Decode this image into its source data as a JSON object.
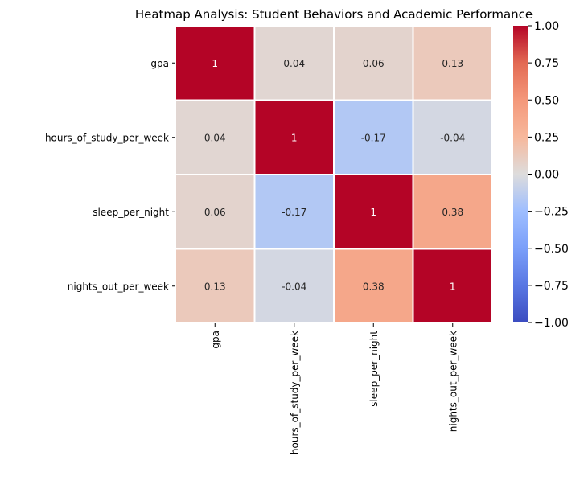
{
  "chart_data": {
    "type": "heatmap",
    "title": "Heatmap Analysis: Student Behaviors and Academic Performance",
    "rows": [
      "gpa",
      "hours_of_study_per_week",
      "sleep_per_night",
      "nights_out_per_week"
    ],
    "columns": [
      "gpa",
      "hours_of_study_per_week",
      "sleep_per_night",
      "nights_out_per_week"
    ],
    "values": [
      [
        1,
        0.04,
        0.06,
        0.13
      ],
      [
        0.04,
        1,
        -0.17,
        -0.04
      ],
      [
        0.06,
        -0.17,
        1,
        0.38
      ],
      [
        0.13,
        -0.04,
        0.38,
        1
      ]
    ],
    "annotations": [
      [
        "1",
        "0.04",
        "0.06",
        "0.13"
      ],
      [
        "0.04",
        "1",
        "-0.17",
        "-0.04"
      ],
      [
        "0.06",
        "-0.17",
        "1",
        "0.38"
      ],
      [
        "0.13",
        "-0.04",
        "0.38",
        "1"
      ]
    ],
    "colormap": "coolwarm",
    "vmin": -1,
    "vmax": 1,
    "colorbar_ticks": [
      1.0,
      0.75,
      0.5,
      0.25,
      0.0,
      -0.25,
      -0.5,
      -0.75,
      -1.0
    ],
    "colorbar_tick_labels": [
      "1.00",
      "0.75",
      "0.50",
      "0.25",
      "0.00",
      "−0.25",
      "−0.50",
      "−0.75",
      "−1.00"
    ],
    "grid": false,
    "legend": "right"
  }
}
